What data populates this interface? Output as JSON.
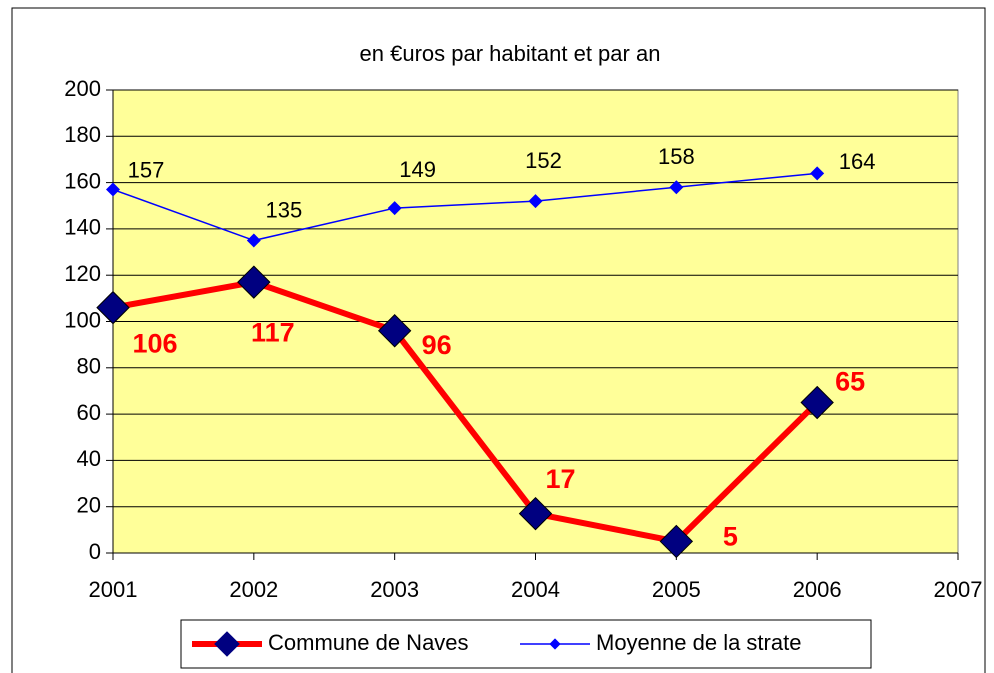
{
  "chart_data": {
    "type": "line",
    "title": "en €uros par habitant et par an",
    "x": [
      2001,
      2002,
      2003,
      2004,
      2005,
      2006
    ],
    "series": [
      {
        "name": "Commune de Naves",
        "color": "#ff0000",
        "marker_color": "#000080",
        "values": [
          106,
          117,
          96,
          17,
          5,
          65
        ]
      },
      {
        "name": "Moyenne de la strate",
        "color": "#0000ff",
        "marker_color": "#0000ff",
        "values": [
          157,
          135,
          149,
          152,
          158,
          164
        ]
      }
    ],
    "xlim": [
      2001,
      2007
    ],
    "xticks": [
      2001,
      2002,
      2003,
      2004,
      2005,
      2006,
      2007
    ],
    "ylim": [
      0,
      200
    ],
    "yticks": [
      0,
      20,
      40,
      60,
      80,
      100,
      120,
      140,
      160,
      180,
      200
    ],
    "grid": true,
    "plot_background": "#ffff99",
    "legend": "bottom"
  }
}
